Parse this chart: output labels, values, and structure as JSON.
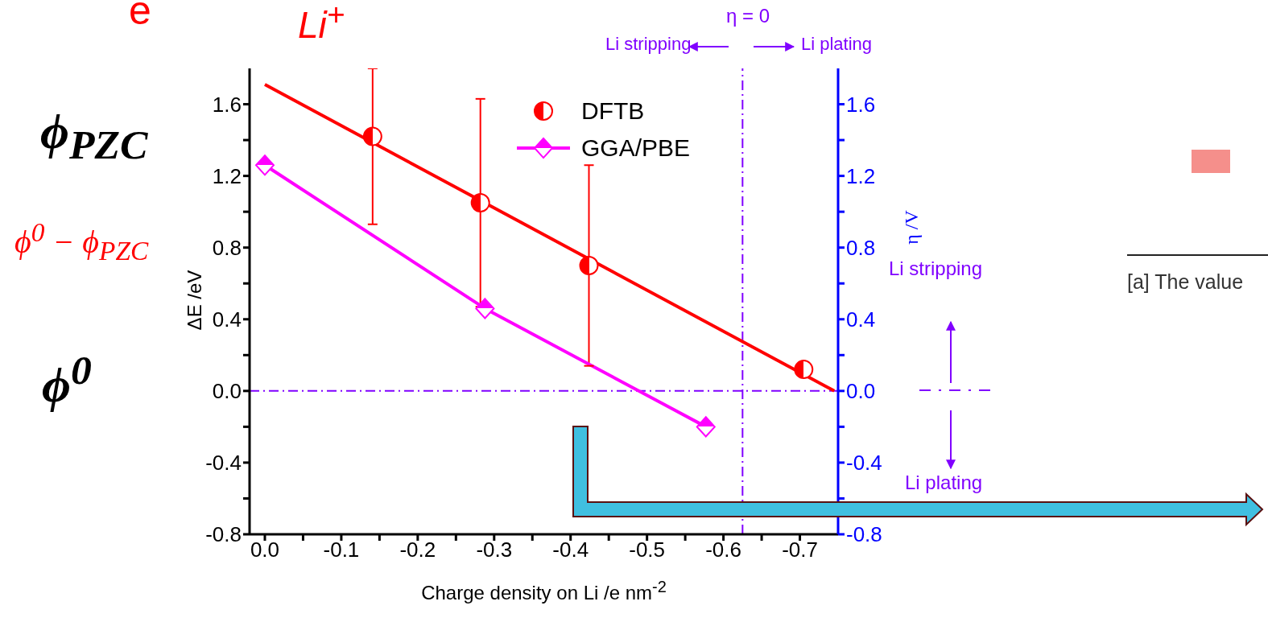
{
  "chart_data": {
    "type": "scatter",
    "xlabel": "Charge density on Li /e nm$^{-2}$",
    "ylabel": "ΔE /eV",
    "y2label": "η /V",
    "xlim": [
      0.02,
      -0.75
    ],
    "xticks": [
      {
        "value": 0,
        "label": "0.0"
      },
      {
        "value": -0.05,
        "label": null
      },
      -0.1,
      {
        "value": -0.15,
        "label": null
      },
      -0.2,
      {
        "value": -0.25,
        "label": null
      },
      -0.3,
      {
        "value": -0.35,
        "label": null
      },
      -0.4,
      {
        "value": -0.45,
        "label": null
      },
      -0.5,
      {
        "value": -0.55,
        "label": null
      },
      -0.6,
      {
        "value": -0.65,
        "label": null
      },
      -0.7
    ],
    "ylim": [
      -0.8,
      1.8
    ],
    "yticks": [
      -0.8,
      {
        "value": -0.6,
        "label": null
      },
      -0.4,
      {
        "value": -0.2,
        "label": null
      },
      {
        "value": 0,
        "label": "0.0"
      },
      {
        "value": 0.2,
        "label": null
      },
      0.4,
      {
        "value": 0.6,
        "label": null
      },
      0.8,
      {
        "value": 1.0,
        "label": null
      },
      1.2,
      {
        "value": 1.4,
        "label": null
      },
      1.6
    ],
    "y2lim": [
      -0.8,
      1.8
    ],
    "y2ticks": [
      -0.8,
      {
        "value": -0.6,
        "label": null
      },
      -0.4,
      {
        "value": -0.2,
        "label": null
      },
      {
        "value": 0,
        "label": "0.0"
      },
      {
        "value": 0.2,
        "label": null
      },
      0.4,
      {
        "value": 0.6,
        "label": null
      },
      0.8,
      {
        "value": 1.0,
        "label": null
      },
      1.2,
      {
        "value": 1.4,
        "label": null
      },
      1.6
    ],
    "series": [
      {
        "name": "DFTB",
        "marker": "circle",
        "color": "#ff0000",
        "x": [
          -0.141,
          -0.282,
          -0.424,
          -0.705
        ],
        "values": [
          1.42,
          1.05,
          0.7,
          0.12
        ],
        "errors": [
          [
            0.93,
            1.8
          ],
          [
            0.47,
            1.63
          ],
          [
            0.14,
            1.26
          ],
          null
        ]
      },
      {
        "type": "line",
        "marker": "none",
        "color": "#ff0000",
        "x": [
          0,
          -0.745
        ],
        "values": [
          1.71,
          0
        ]
      },
      {
        "name": "GGA/PBE",
        "type": "line",
        "marker": "diamond",
        "color": "#ff00ff",
        "x": [
          0,
          -0.288,
          -0.577
        ],
        "values": [
          1.26,
          0.46,
          -0.2
        ]
      }
    ],
    "ref_lines": [
      {
        "axis": "y",
        "value": 0,
        "color": "#8000ff",
        "line_style": "dashed"
      },
      {
        "axis": "x",
        "value": -0.625,
        "color": "#8000ff",
        "line_style": "dashed"
      }
    ],
    "legend": "top right",
    "annotations": [
      "e",
      "Li$^{+}$",
      "ϕ$_{PZC}$",
      "ϕ$^{0}$ − ϕ$_{PZC}$",
      "ϕ$^{0}$",
      "Li stripping",
      "Li plating",
      "Li stripping",
      "Li plating",
      "[a] The value",
      "η = 0"
    ]
  }
}
